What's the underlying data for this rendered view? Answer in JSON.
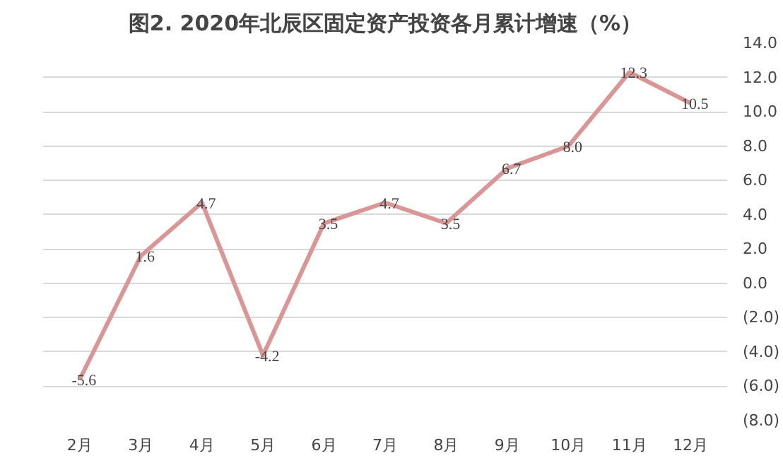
{
  "chart_data": {
    "type": "line",
    "title": "图2. 2020年北辰区固定资产投资各月累计增速（%）",
    "categories": [
      "2月",
      "3月",
      "4月",
      "5月",
      "6月",
      "7月",
      "8月",
      "9月",
      "10月",
      "11月",
      "12月"
    ],
    "series": [
      {
        "color": "#d99694",
        "values": [
          -5.6,
          1.6,
          4.7,
          -4.2,
          3.5,
          4.7,
          3.5,
          6.7,
          8.0,
          12.3,
          10.5
        ]
      }
    ],
    "value_labels": [
      "-5.6",
      "1.6",
      "4.7",
      "-4.2",
      "3.5",
      "4.7",
      "3.5",
      "6.7",
      "8.0",
      "12.3",
      "10.5"
    ],
    "ylim": [
      -8,
      14
    ],
    "yticks": [
      {
        "value": 14,
        "label": "14.0"
      },
      {
        "value": 12,
        "label": "12.0"
      },
      {
        "value": 10,
        "label": "10.0"
      },
      {
        "value": 8,
        "label": "8.0"
      },
      {
        "value": 6,
        "label": "6.0"
      },
      {
        "value": 4,
        "label": "4.0"
      },
      {
        "value": 2,
        "label": "2.0"
      },
      {
        "value": 0,
        "label": "0.0"
      },
      {
        "value": -2,
        "label": "(2.0)"
      },
      {
        "value": -4,
        "label": "(4.0)"
      },
      {
        "value": -6,
        "label": "(6.0)"
      },
      {
        "value": -8,
        "label": "(8.0)"
      }
    ],
    "grid": "y",
    "line_style": "solid"
  }
}
